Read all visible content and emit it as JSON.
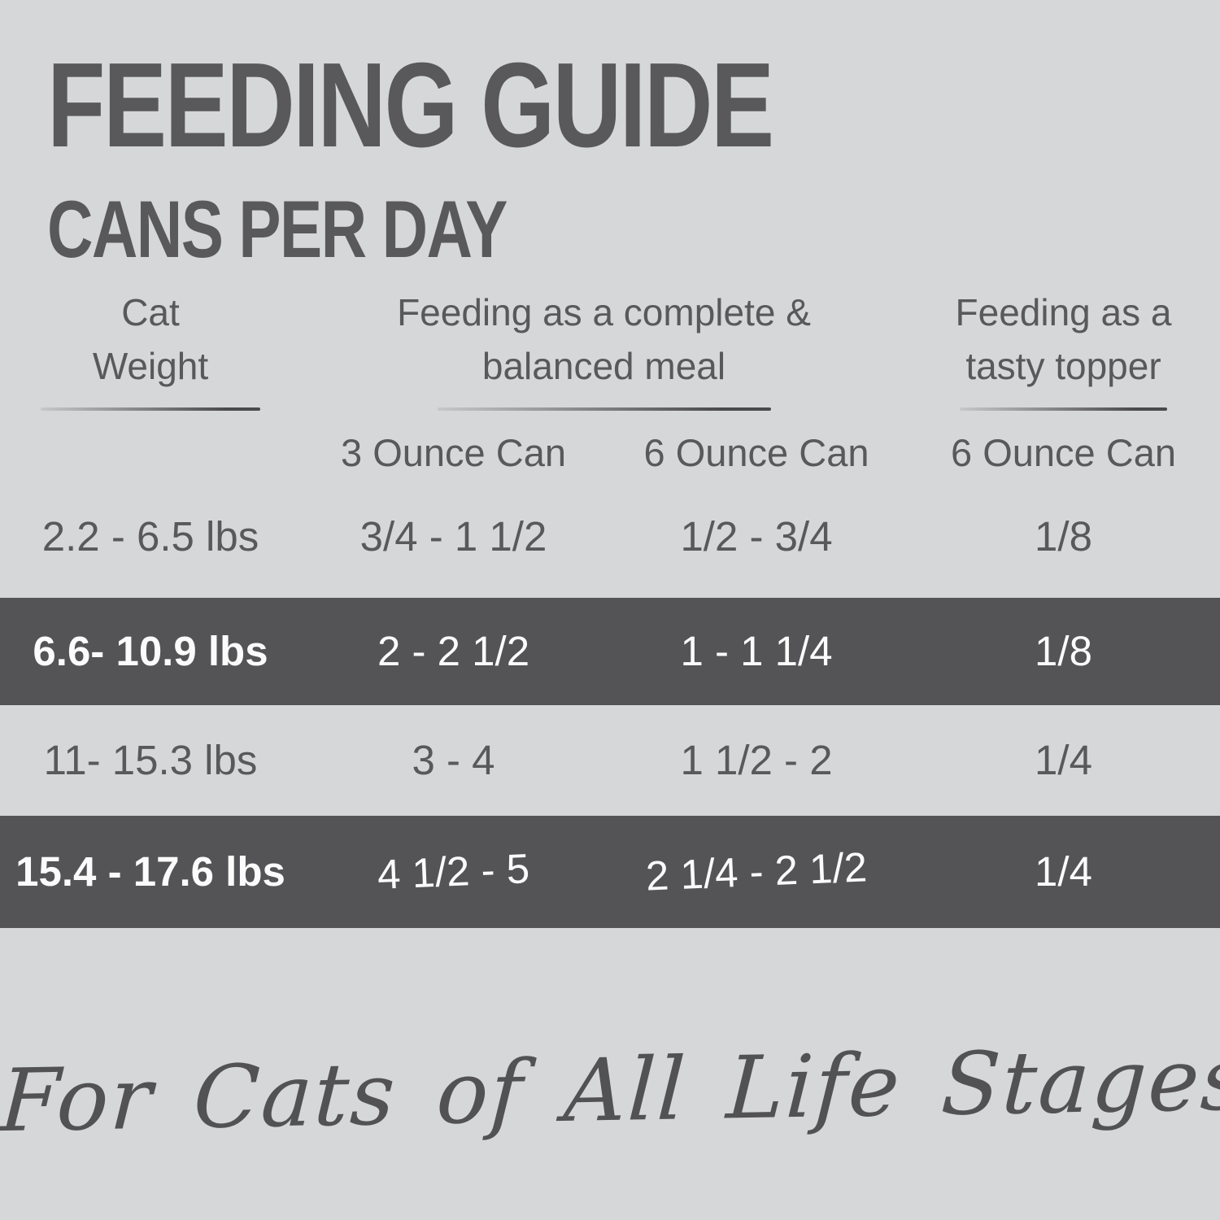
{
  "colors": {
    "background": "#d6d7d9",
    "highlight_band": "#545457",
    "text": "#59595b",
    "band_text": "#ffffff"
  },
  "title": {
    "line1": "FEEDING GUIDE",
    "line2": "CANS PER DAY"
  },
  "table": {
    "headers": [
      {
        "lines": [
          "Cat",
          "Weight"
        ]
      },
      {
        "lines": [
          "Feeding as a complete &",
          "balanced meal"
        ]
      },
      {
        "lines": [
          "Feeding as a",
          "tasty topper"
        ]
      }
    ],
    "sub_headers": [
      "3 Ounce Can",
      "6 Ounce Can",
      "6 Ounce Can"
    ],
    "rows": [
      {
        "highlight": false,
        "cells": [
          "2.2 - 6.5 lbs",
          "3/4 - 1 1/2",
          "1/2 - 3/4",
          "1/8"
        ]
      },
      {
        "highlight": true,
        "cells": [
          "6.6- 10.9 lbs",
          "2 - 2 1/2",
          "1 - 1 1/4",
          "1/8"
        ]
      },
      {
        "highlight": false,
        "cells": [
          "11- 15.3 lbs",
          "3 - 4",
          "1 1/2 - 2",
          "1/4"
        ]
      },
      {
        "highlight": true,
        "cells": [
          "15.4 - 17.6 lbs",
          "4 1/2 - 5",
          "2 1/4 - 2 1/2",
          "1/4"
        ]
      }
    ]
  },
  "footer": {
    "tagline": "For Cats of All Life Stages"
  },
  "chart_data": {
    "type": "table",
    "title": "FEEDING GUIDE",
    "subtitle": "CANS PER DAY",
    "column_groups": [
      "Cat Weight",
      "Feeding as a complete & balanced meal",
      "Feeding as a tasty topper"
    ],
    "columns": [
      "Cat Weight",
      "Complete & balanced meal - 3 Ounce Can",
      "Complete & balanced meal - 6 Ounce Can",
      "Tasty topper - 6 Ounce Can"
    ],
    "rows": [
      [
        "2.2 - 6.5 lbs",
        "3/4 - 1 1/2",
        "1/2 - 3/4",
        "1/8"
      ],
      [
        "6.6- 10.9 lbs",
        "2 - 2 1/2",
        "1 - 1 1/4",
        "1/8"
      ],
      [
        "11- 15.3 lbs",
        "3 - 4",
        "1 1/2 - 2",
        "1/4"
      ],
      [
        "15.4 - 17.6 lbs",
        "4 1/2 - 5",
        "2 1/4 - 2 1/2",
        "1/4"
      ]
    ],
    "highlighted_rows": [
      1,
      3
    ],
    "footnote": "For Cats of All Life Stages"
  }
}
